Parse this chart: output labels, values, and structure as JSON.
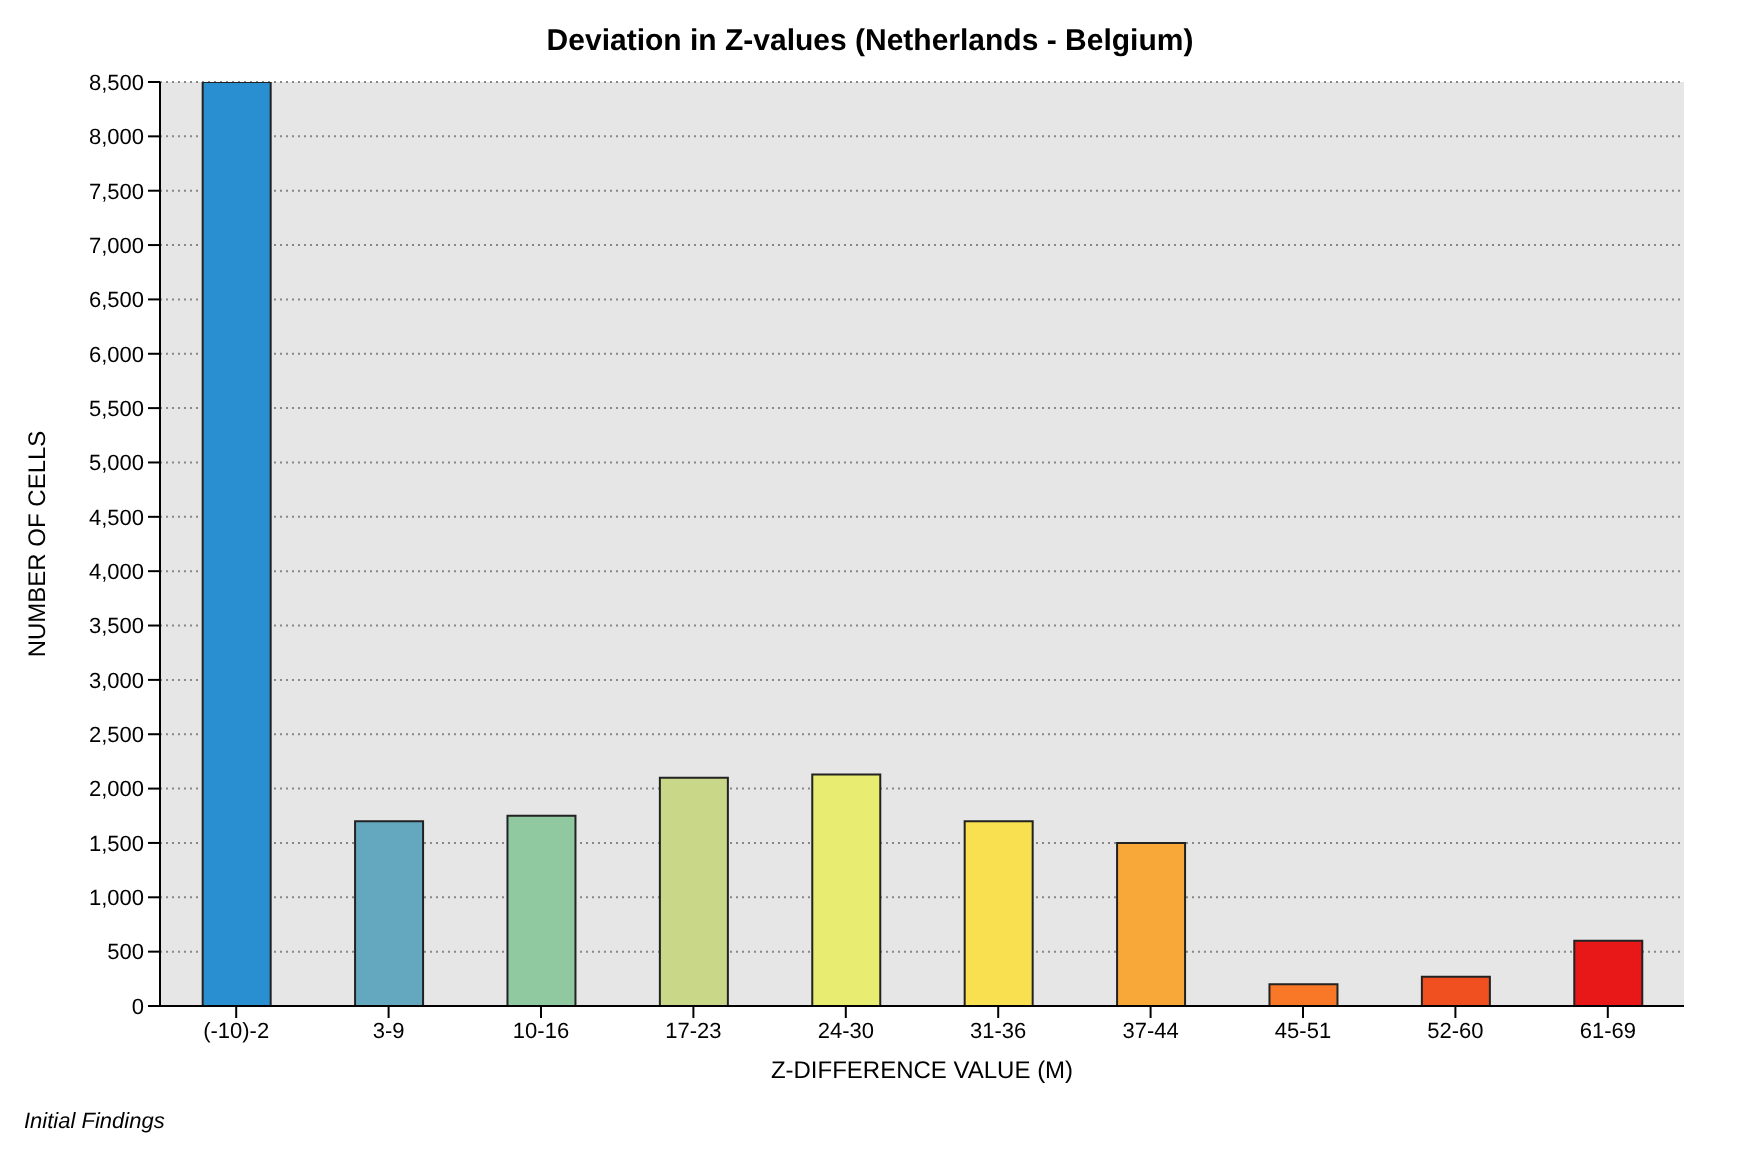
{
  "chart_data": {
    "type": "bar",
    "title": "Deviation in Z-values (Netherlands - Belgium)",
    "xlabel": "Z-DIFFERENCE VALUE (M)",
    "ylabel": "NUMBER OF CELLS",
    "categories": [
      "(-10)-2",
      "3-9",
      "10-16",
      "17-23",
      "24-30",
      "31-36",
      "37-44",
      "45-51",
      "52-60",
      "61-69"
    ],
    "values": [
      8500,
      1700,
      1750,
      2100,
      2130,
      1700,
      1500,
      200,
      270,
      600
    ],
    "colors": [
      "#2a8fd0",
      "#64a8c0",
      "#90c8a0",
      "#c8d888",
      "#e8ec70",
      "#f8e050",
      "#f8a838",
      "#f87828",
      "#f05020",
      "#e81818"
    ],
    "ylim": [
      0,
      8500
    ],
    "yticks": [
      0,
      500,
      {
        "value": 1000,
        "label": "1,000"
      },
      {
        "value": 1500,
        "label": "1,500"
      },
      {
        "value": 2000,
        "label": "2,000"
      },
      {
        "value": 2500,
        "label": "2,500"
      },
      {
        "value": 3000,
        "label": "3,000"
      },
      {
        "value": 3500,
        "label": "3,500"
      },
      {
        "value": 4000,
        "label": "4,000"
      },
      {
        "value": 4500,
        "label": "4,500"
      },
      {
        "value": 5000,
        "label": "5,000"
      },
      {
        "value": 5500,
        "label": "5,500"
      },
      {
        "value": 6000,
        "label": "6,000"
      },
      {
        "value": 6500,
        "label": "6,500"
      },
      {
        "value": 7000,
        "label": "7,000"
      },
      {
        "value": 7500,
        "label": "7,500"
      },
      {
        "value": 8000,
        "label": "8,000"
      },
      {
        "value": 8500,
        "label": "8,500"
      }
    ],
    "grid": "y",
    "annotations": [
      "Initial Findings"
    ]
  }
}
